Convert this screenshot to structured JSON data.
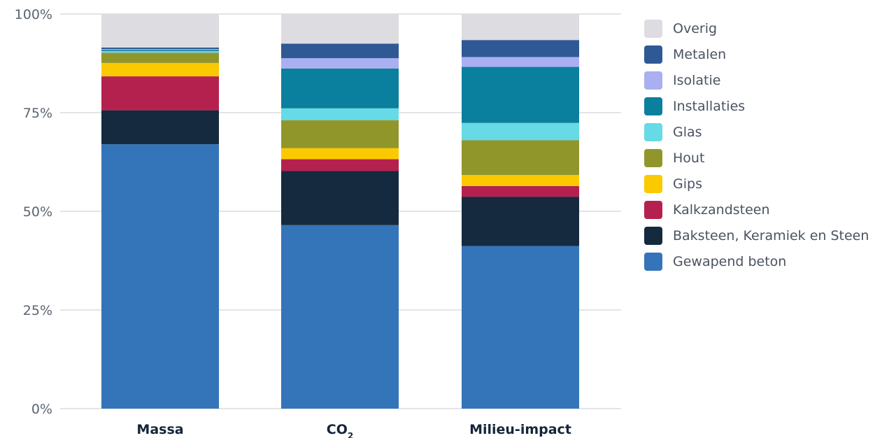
{
  "chart_data": {
    "type": "bar",
    "stacked": true,
    "normalized": true,
    "categories": [
      {
        "label": "Massa",
        "sub": ""
      },
      {
        "label": "CO",
        "sub": "2"
      },
      {
        "label": "Milieu-impact",
        "sub": ""
      }
    ],
    "y_ticks": [
      "0%",
      "25%",
      "50%",
      "75%",
      "100%"
    ],
    "ylim": [
      0,
      100
    ],
    "grid": true,
    "legend_position": "right",
    "series": [
      {
        "name": "Gewapend beton",
        "color": "#3375b8",
        "values": [
          67.0,
          46.5,
          41.2
        ]
      },
      {
        "name": "Baksteen, Keramiek en Steen",
        "color": "#15293f",
        "values": [
          8.6,
          13.7,
          12.5
        ]
      },
      {
        "name": "Kalkzandsteen",
        "color": "#b5214e",
        "values": [
          8.6,
          3.0,
          2.7
        ]
      },
      {
        "name": "Gips",
        "color": "#fbc900",
        "values": [
          3.4,
          2.8,
          2.8
        ]
      },
      {
        "name": "Hout",
        "color": "#91962b",
        "values": [
          2.6,
          7.1,
          8.8
        ]
      },
      {
        "name": "Glas",
        "color": "#66dae5",
        "values": [
          0.4,
          3.0,
          4.4
        ]
      },
      {
        "name": "Installaties",
        "color": "#0b7f9e",
        "values": [
          0.3,
          10.1,
          14.2
        ]
      },
      {
        "name": "Isolatie",
        "color": "#a9aff0",
        "values": [
          0.2,
          2.6,
          2.5
        ]
      },
      {
        "name": "Metalen",
        "color": "#2e5994",
        "values": [
          0.4,
          3.7,
          4.3
        ]
      },
      {
        "name": "Overig",
        "color": "#dddce0",
        "values": [
          8.5,
          7.5,
          6.6
        ]
      }
    ]
  }
}
